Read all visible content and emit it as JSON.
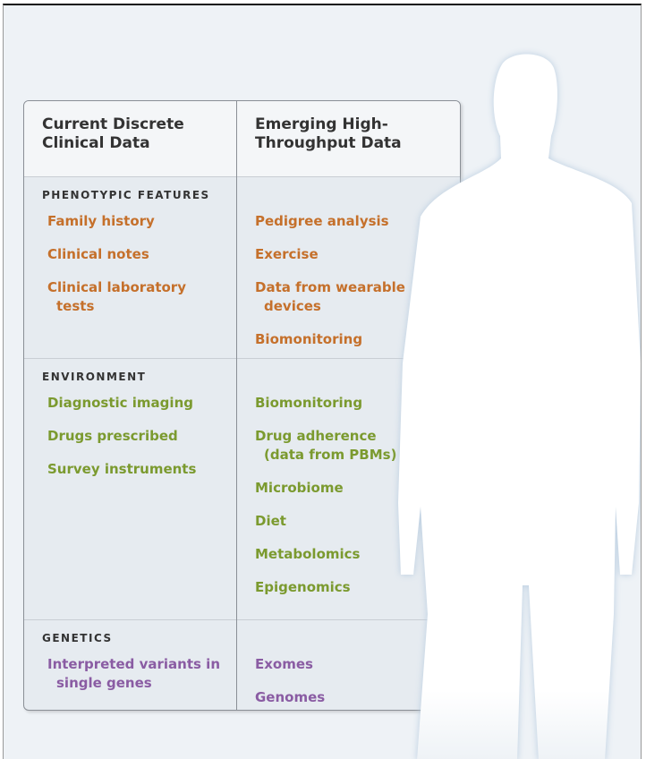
{
  "header": {
    "left": "Current Discrete\nClinical Data",
    "right": "Emerging High-\nThroughput Data"
  },
  "sections": [
    {
      "label": "PHENOTYPIC FEATURES",
      "current": [
        "Family history",
        "Clinical notes",
        "Clinical laboratory\ntests"
      ],
      "emerging": [
        "Pedigree analysis",
        "Exercise",
        "Data from wearable\ndevices",
        "Biomonitoring"
      ]
    },
    {
      "label": "ENVIRONMENT",
      "current": [
        "Diagnostic imaging",
        "Drugs prescribed",
        "Survey instruments"
      ],
      "emerging": [
        "Biomonitoring",
        "Drug adherence\n(data from PBMs)",
        "Microbiome",
        "Diet",
        "Metabolomics",
        "Epigenomics"
      ]
    },
    {
      "label": "GENETICS",
      "current": [
        "Interpreted variants in\nsingle genes"
      ],
      "emerging": [
        "Exomes",
        "Genomes"
      ]
    }
  ]
}
